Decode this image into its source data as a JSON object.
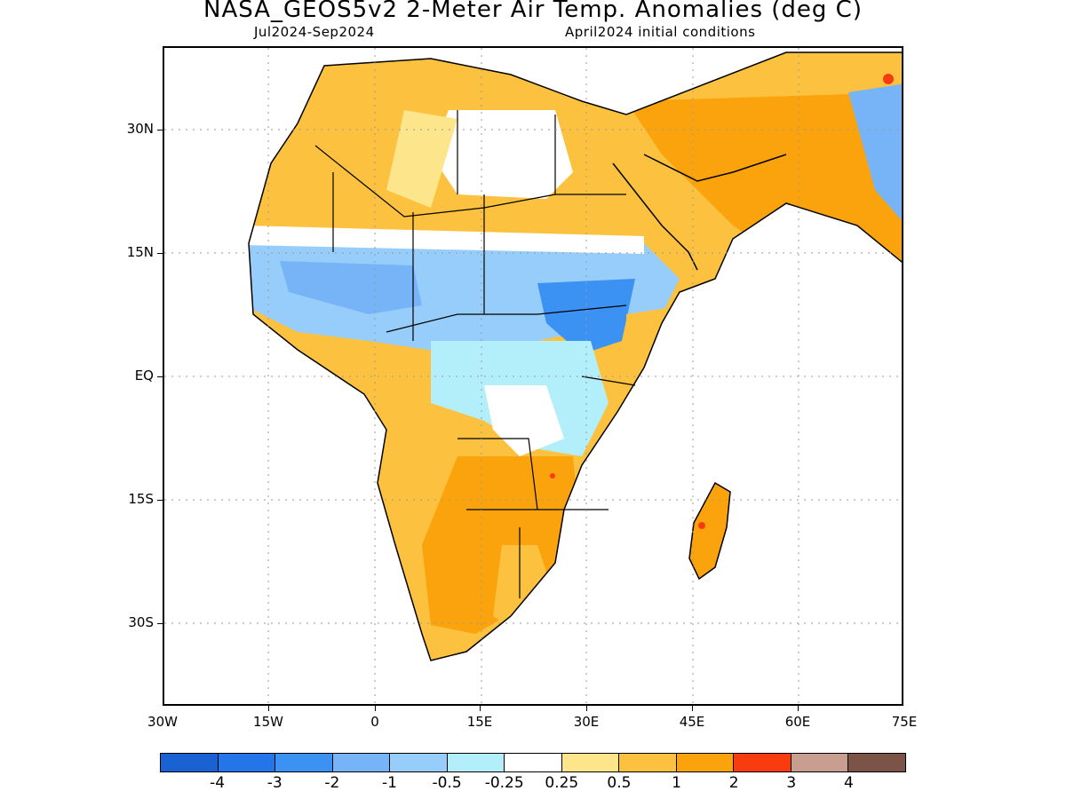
{
  "title": "NASA_GEOS5v2 2-Meter Air Temp. Anomalies (deg C)",
  "subtitle_left": "Jul2024-Sep2024",
  "subtitle_right": "April2024 initial conditions",
  "map": {
    "lon_range": [
      -30,
      75
    ],
    "lat_range": [
      -40,
      43
    ],
    "lat_labels": [
      "30N",
      "15N",
      "EQ",
      "15S",
      "30S"
    ],
    "lon_labels": [
      "30W",
      "15W",
      "0",
      "15E",
      "30E",
      "45E",
      "60E",
      "75E"
    ],
    "grid": "dotted",
    "anomaly_regions": [
      {
        "name": "Sahara / North Africa",
        "level": "0.5 to 1"
      },
      {
        "name": "Arabian Peninsula",
        "level": "1 to 2"
      },
      {
        "name": "Sahel",
        "level": "-1 to -0.5"
      },
      {
        "name": "Central Africa",
        "level": "-1 to -0.25"
      },
      {
        "name": "Southern Africa",
        "level": "1 to 2"
      },
      {
        "name": "Madagascar",
        "level": "1 to 2"
      }
    ]
  },
  "colorbar": {
    "colors": [
      "#1a62d4",
      "#2575ea",
      "#3b92f3",
      "#76b4f7",
      "#97cdfb",
      "#b2effa",
      "#ffffff",
      "#fde58c",
      "#fcc23f",
      "#fba30c",
      "#f83c10",
      "#c89e91",
      "#7b5447"
    ],
    "labels": [
      "-4",
      "-3",
      "-2",
      "-1",
      "-0.5",
      "-0.25",
      "0.25",
      "0.5",
      "1",
      "2",
      "3",
      "4"
    ]
  }
}
